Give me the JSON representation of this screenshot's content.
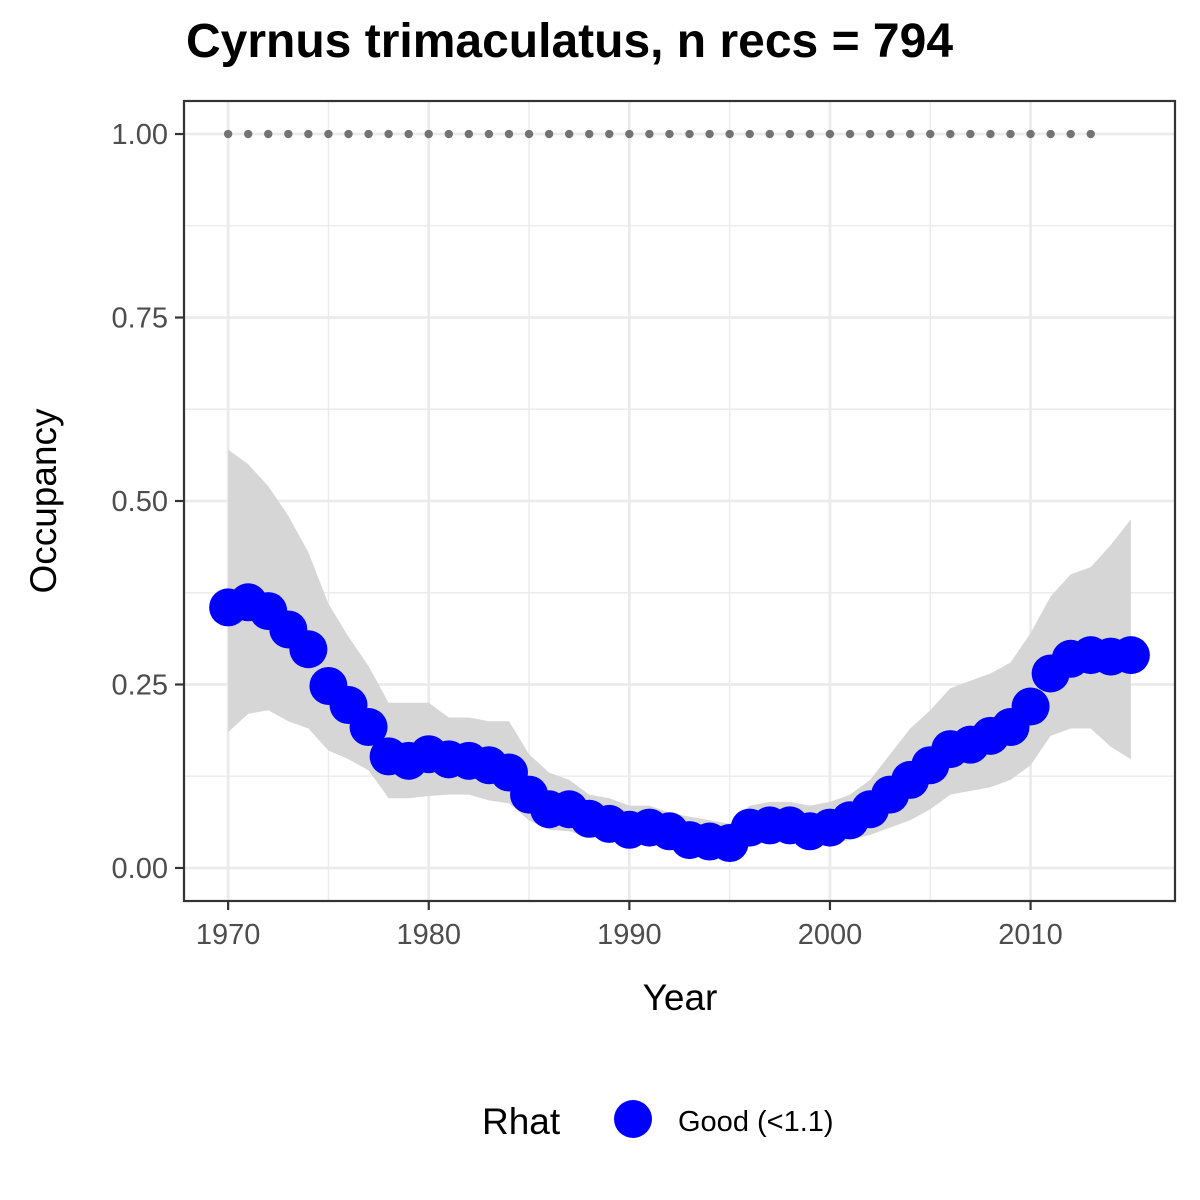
{
  "chart_data": {
    "type": "scatter",
    "title": "Cyrnus trimaculatus, n recs = 794",
    "xlabel": "Year",
    "ylabel": "Occupancy",
    "xlim": [
      1967.8,
      2017.2
    ],
    "ylim": [
      -0.045,
      1.045
    ],
    "x_ticks": [
      1970,
      1980,
      1990,
      2000,
      2010
    ],
    "x_tick_labels": [
      "1970",
      "1980",
      "1990",
      "2000",
      "2010"
    ],
    "y_ticks": [
      0,
      0.25,
      0.5,
      0.75,
      1.0
    ],
    "y_tick_labels": [
      "0.00",
      "0.25",
      "0.50",
      "0.75",
      "1.00"
    ],
    "grid": true,
    "legend": {
      "title": "Rhat",
      "placement": "bottom",
      "items": [
        {
          "label": "Good (<1.1)",
          "color": "#0000ff"
        }
      ]
    },
    "series": [
      {
        "name": "Good (<1.1)",
        "color": "#0000ff",
        "x": [
          1970,
          1971,
          1972,
          1973,
          1974,
          1975,
          1976,
          1977,
          1978,
          1979,
          1980,
          1981,
          1982,
          1983,
          1984,
          1985,
          1986,
          1987,
          1988,
          1989,
          1990,
          1991,
          1992,
          1993,
          1994,
          1995,
          1996,
          1997,
          1998,
          1999,
          2000,
          2001,
          2002,
          2003,
          2004,
          2005,
          2006,
          2007,
          2008,
          2009,
          2010,
          2011,
          2012,
          2013,
          2014,
          2015
        ],
        "y": [
          0.355,
          0.362,
          0.35,
          0.325,
          0.298,
          0.248,
          0.222,
          0.192,
          0.152,
          0.146,
          0.155,
          0.148,
          0.146,
          0.14,
          0.13,
          0.1,
          0.08,
          0.08,
          0.067,
          0.06,
          0.052,
          0.055,
          0.05,
          0.038,
          0.036,
          0.034,
          0.055,
          0.058,
          0.058,
          0.05,
          0.055,
          0.065,
          0.08,
          0.1,
          0.12,
          0.14,
          0.162,
          0.168,
          0.18,
          0.192,
          0.22,
          0.265,
          0.285,
          0.29,
          0.288,
          0.29
        ]
      }
    ],
    "ribbon": {
      "x": [
        1970,
        1971,
        1972,
        1973,
        1974,
        1975,
        1976,
        1977,
        1978,
        1979,
        1980,
        1981,
        1982,
        1983,
        1984,
        1985,
        1986,
        1987,
        1988,
        1989,
        1990,
        1991,
        1992,
        1993,
        1994,
        1995,
        1996,
        1997,
        1998,
        1999,
        2000,
        2001,
        2002,
        2003,
        2004,
        2005,
        2006,
        2007,
        2008,
        2009,
        2010,
        2011,
        2012,
        2013,
        2014,
        2015
      ],
      "lower": [
        0.185,
        0.21,
        0.215,
        0.2,
        0.19,
        0.16,
        0.148,
        0.133,
        0.095,
        0.095,
        0.098,
        0.1,
        0.1,
        0.092,
        0.088,
        0.065,
        0.052,
        0.05,
        0.042,
        0.038,
        0.032,
        0.032,
        0.03,
        0.025,
        0.022,
        0.02,
        0.032,
        0.035,
        0.035,
        0.03,
        0.033,
        0.038,
        0.045,
        0.055,
        0.065,
        0.08,
        0.1,
        0.105,
        0.11,
        0.12,
        0.14,
        0.18,
        0.19,
        0.19,
        0.165,
        0.148
      ],
      "upper": [
        0.57,
        0.55,
        0.52,
        0.48,
        0.43,
        0.36,
        0.315,
        0.275,
        0.225,
        0.225,
        0.225,
        0.205,
        0.205,
        0.2,
        0.2,
        0.155,
        0.13,
        0.12,
        0.1,
        0.095,
        0.085,
        0.085,
        0.075,
        0.07,
        0.065,
        0.06,
        0.085,
        0.09,
        0.09,
        0.085,
        0.09,
        0.1,
        0.12,
        0.155,
        0.19,
        0.215,
        0.245,
        0.255,
        0.265,
        0.28,
        0.32,
        0.37,
        0.4,
        0.41,
        0.44,
        0.475
      ]
    },
    "reference_points": {
      "y": 1.0,
      "x": [
        1970,
        1971,
        1972,
        1973,
        1974,
        1975,
        1976,
        1977,
        1978,
        1979,
        1980,
        1981,
        1982,
        1983,
        1984,
        1985,
        1986,
        1987,
        1988,
        1989,
        1990,
        1991,
        1992,
        1993,
        1994,
        1995,
        1996,
        1997,
        1998,
        1999,
        2000,
        2001,
        2002,
        2003,
        2004,
        2005,
        2006,
        2007,
        2008,
        2009,
        2010,
        2011,
        2012,
        2013
      ]
    }
  }
}
